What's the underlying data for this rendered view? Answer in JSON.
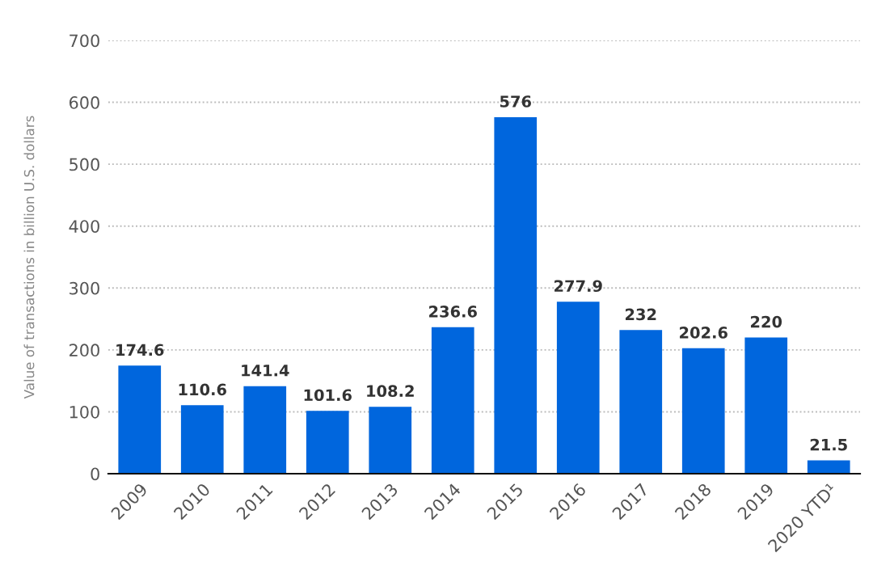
{
  "chart_data": {
    "type": "bar",
    "ylabel": "Value of transactions in billion U.S. dollars",
    "categories": [
      "2009",
      "2010",
      "2011",
      "2012",
      "2013",
      "2014",
      "2015",
      "2016",
      "2017",
      "2018",
      "2019",
      "2020 YTD¹"
    ],
    "values": [
      174.6,
      110.6,
      141.4,
      101.6,
      108.2,
      236.6,
      576,
      277.9,
      232,
      202.6,
      220,
      21.5
    ],
    "color": "#0066dd",
    "ylim": [
      0,
      700
    ],
    "yticks": [
      0,
      100,
      200,
      300,
      400,
      500,
      600,
      700
    ],
    "grid": "y",
    "data_labels": true
  }
}
